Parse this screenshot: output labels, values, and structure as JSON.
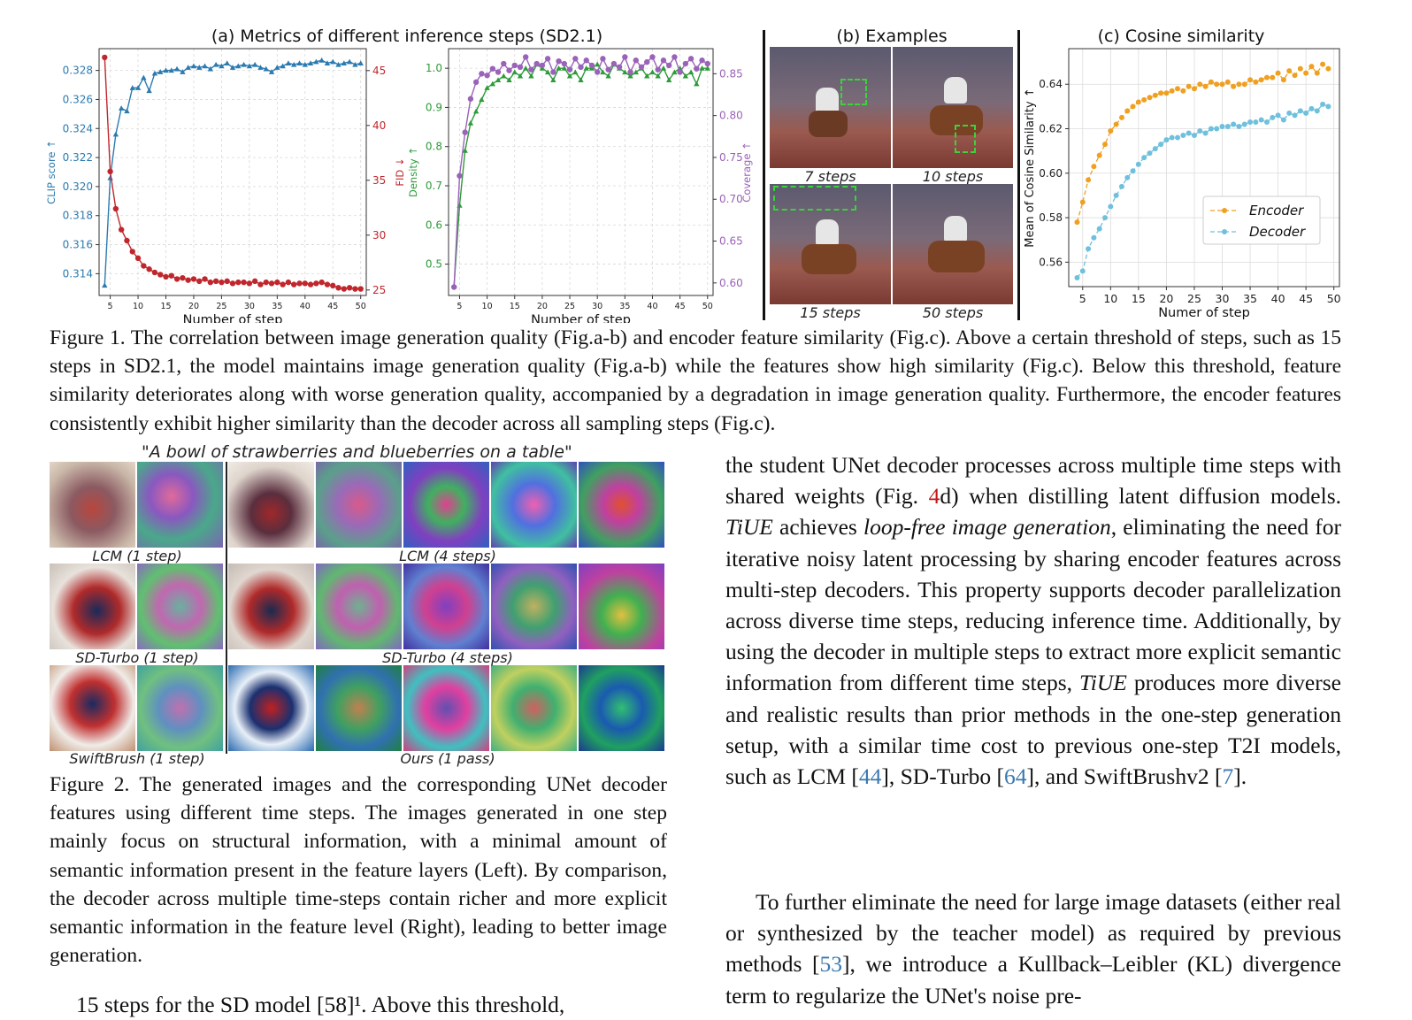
{
  "fig1": {
    "panel_a_title": "(a) Metrics of different inference steps (SD2.1)",
    "panel_b_title": "(b) Examples",
    "panel_c_title": "(c) Cosine similarity",
    "step_labels": [
      "7 steps",
      "10 steps",
      "15 steps",
      "50 steps"
    ],
    "caption": "Figure 1. The correlation between image generation quality (Fig.a-b) and encoder feature similarity (Fig.c). Above a certain threshold of steps, such as 15 steps in SD2.1, the model maintains image generation quality (Fig.a-b) while the features show high similarity (Fig.c). Below this threshold, feature similarity deteriorates along with worse generation quality, accompanied by a degradation in image generation quality. Furthermore, the encoder features consistently exhibit higher similarity than the decoder across all sampling steps (Fig.c)."
  },
  "chart_data": [
    {
      "type": "line",
      "xlabel": "Number of step",
      "x": [
        4,
        5,
        6,
        7,
        8,
        9,
        10,
        11,
        12,
        13,
        14,
        15,
        16,
        17,
        18,
        19,
        20,
        21,
        22,
        23,
        24,
        25,
        26,
        27,
        28,
        29,
        30,
        31,
        32,
        33,
        34,
        35,
        36,
        37,
        38,
        39,
        40,
        41,
        42,
        43,
        44,
        45,
        46,
        47,
        48,
        49,
        50
      ],
      "x_ticks": [
        5,
        10,
        15,
        20,
        25,
        30,
        35,
        40,
        45,
        50
      ],
      "y_left": {
        "label": "CLIP score ↑",
        "color": "#2b7bb0",
        "ylim": [
          0.3125,
          0.3295
        ],
        "ticks": [
          0.314,
          0.316,
          0.318,
          0.32,
          0.322,
          0.324,
          0.326,
          0.328
        ]
      },
      "y_right": {
        "label": "FID ↓",
        "color": "#c0272d",
        "ylim": [
          24.5,
          47
        ],
        "ticks": [
          25,
          30,
          35,
          40,
          45
        ]
      },
      "series": [
        {
          "axis": "left",
          "marker": "triangle",
          "color": "#2b7bb0",
          "values": [
            0.3132,
            0.3206,
            0.3236,
            0.3254,
            0.3252,
            0.3268,
            0.3268,
            0.3275,
            0.3266,
            0.3278,
            0.3279,
            0.328,
            0.328,
            0.3281,
            0.3279,
            0.3282,
            0.3283,
            0.3282,
            0.3283,
            0.3281,
            0.3284,
            0.3283,
            0.3285,
            0.3282,
            0.3283,
            0.3284,
            0.3283,
            0.3284,
            0.3282,
            0.3281,
            0.3279,
            0.3282,
            0.3283,
            0.3285,
            0.3284,
            0.3285,
            0.3284,
            0.3285,
            0.3286,
            0.3287,
            0.3285,
            0.3286,
            0.3284,
            0.3285,
            0.3286,
            0.3284,
            0.3285
          ]
        },
        {
          "axis": "right",
          "marker": "circle",
          "color": "#c0272d",
          "values": [
            46.2,
            35.8,
            32.4,
            30.5,
            29.5,
            28.5,
            27.9,
            27.2,
            26.9,
            26.6,
            26.4,
            26.2,
            26.3,
            26.0,
            26.1,
            25.9,
            26.0,
            25.8,
            26.0,
            25.7,
            25.8,
            25.7,
            25.8,
            25.6,
            25.7,
            25.7,
            25.6,
            25.8,
            25.5,
            25.7,
            25.6,
            25.7,
            25.5,
            25.7,
            25.5,
            25.6,
            25.6,
            25.5,
            25.6,
            25.7,
            25.5,
            25.4,
            25.2,
            25.1,
            25.2,
            25.1,
            25.1
          ]
        }
      ]
    },
    {
      "type": "line",
      "xlabel": "Number of step",
      "x": [
        4,
        5,
        6,
        7,
        8,
        9,
        10,
        11,
        12,
        13,
        14,
        15,
        16,
        17,
        18,
        19,
        20,
        21,
        22,
        23,
        24,
        25,
        26,
        27,
        28,
        29,
        30,
        31,
        32,
        33,
        34,
        35,
        36,
        37,
        38,
        39,
        40,
        41,
        42,
        43,
        44,
        45,
        46,
        47,
        48,
        49,
        50
      ],
      "x_ticks": [
        5,
        10,
        15,
        20,
        25,
        30,
        35,
        40,
        45,
        50
      ],
      "y_left": {
        "label": "Density ↑",
        "color": "#2e9b3a",
        "ylim": [
          0.42,
          1.05
        ],
        "ticks": [
          0.5,
          0.6,
          0.7,
          0.8,
          0.9,
          1.0
        ]
      },
      "y_right": {
        "label": "Coverage ↑",
        "color": "#9a62b8",
        "ylim": [
          0.585,
          0.88
        ],
        "ticks": [
          0.6,
          0.65,
          0.7,
          0.75,
          0.8,
          0.85
        ]
      },
      "series": [
        {
          "axis": "left",
          "marker": "triangle",
          "color": "#2e9b3a",
          "values": [
            0.445,
            0.65,
            0.79,
            0.86,
            0.89,
            0.92,
            0.95,
            0.96,
            0.97,
            0.98,
            0.97,
            0.99,
            0.98,
            1.0,
            0.98,
            1.01,
            1.0,
            0.99,
            0.97,
            1.0,
            1.0,
            0.98,
            0.99,
            0.97,
            1.0,
            1.0,
            1.01,
            0.99,
            0.98,
            1.01,
            1.0,
            0.99,
            0.98,
            0.99,
            1.0,
            0.98,
            0.99,
            0.98,
            1.0,
            0.97,
            0.99,
            1.0,
            0.98,
            0.99,
            0.96,
            1.0,
            1.0
          ]
        },
        {
          "axis": "right",
          "marker": "circle",
          "color": "#9a62b8",
          "values": [
            0.595,
            0.728,
            0.78,
            0.82,
            0.84,
            0.85,
            0.848,
            0.856,
            0.852,
            0.862,
            0.854,
            0.86,
            0.858,
            0.87,
            0.855,
            0.862,
            0.86,
            0.868,
            0.852,
            0.865,
            0.862,
            0.855,
            0.868,
            0.858,
            0.866,
            0.86,
            0.852,
            0.868,
            0.855,
            0.862,
            0.858,
            0.87,
            0.852,
            0.866,
            0.858,
            0.864,
            0.87,
            0.855,
            0.866,
            0.86,
            0.87,
            0.852,
            0.862,
            0.868,
            0.856,
            0.866,
            0.862
          ]
        }
      ]
    },
    {
      "type": "line",
      "xlabel": "Numer of step",
      "ylabel": "Mean of Cosine Similarity ↑",
      "x": [
        4,
        5,
        6,
        7,
        8,
        9,
        10,
        11,
        12,
        13,
        14,
        15,
        16,
        17,
        18,
        19,
        20,
        21,
        22,
        23,
        24,
        25,
        26,
        27,
        28,
        29,
        30,
        31,
        32,
        33,
        34,
        35,
        36,
        37,
        38,
        39,
        40,
        41,
        42,
        43,
        44,
        45,
        46,
        47,
        48,
        49
      ],
      "x_ticks": [
        5,
        10,
        15,
        20,
        25,
        30,
        35,
        40,
        45,
        50
      ],
      "ylim": [
        0.549,
        0.656
      ],
      "y_ticks": [
        0.56,
        0.58,
        0.6,
        0.62,
        0.64
      ],
      "legend": "center-right",
      "series": [
        {
          "name": "Encoder",
          "color": "#f0a020",
          "values": [
            0.578,
            0.587,
            0.597,
            0.603,
            0.608,
            0.613,
            0.619,
            0.622,
            0.625,
            0.628,
            0.63,
            0.632,
            0.633,
            0.634,
            0.635,
            0.636,
            0.636,
            0.637,
            0.638,
            0.637,
            0.639,
            0.638,
            0.64,
            0.639,
            0.641,
            0.64,
            0.64,
            0.641,
            0.639,
            0.64,
            0.64,
            0.642,
            0.641,
            0.642,
            0.643,
            0.643,
            0.645,
            0.642,
            0.646,
            0.644,
            0.647,
            0.645,
            0.648,
            0.645,
            0.649,
            0.647
          ]
        },
        {
          "name": "Decoder",
          "color": "#6fc0dd",
          "values": [
            0.553,
            0.556,
            0.566,
            0.571,
            0.575,
            0.58,
            0.585,
            0.59,
            0.594,
            0.598,
            0.601,
            0.604,
            0.607,
            0.609,
            0.611,
            0.613,
            0.615,
            0.616,
            0.616,
            0.617,
            0.618,
            0.617,
            0.619,
            0.618,
            0.62,
            0.62,
            0.621,
            0.621,
            0.622,
            0.621,
            0.622,
            0.623,
            0.623,
            0.624,
            0.623,
            0.625,
            0.626,
            0.624,
            0.627,
            0.626,
            0.628,
            0.627,
            0.629,
            0.628,
            0.631,
            0.63
          ]
        }
      ]
    }
  ],
  "fig2": {
    "prompt": "\"A bowl of strawberries and blueberries on a table\"",
    "labels": [
      "LCM (1 step)",
      "LCM (4 steps)",
      "SD-Turbo (1 step)",
      "SD-Turbo (4 steps)",
      "SwiftBrush (1 step)",
      "Ours (1 pass)"
    ],
    "caption": "Figure 2. The generated images and the corresponding UNet decoder features using different time steps. The images generated in one step mainly focus on structural information, with a minimal amount of semantic information present in the feature layers (Left). By comparison, the decoder across multiple time-steps contain richer and more explicit semantic information in the feature level (Right), leading to better image generation.",
    "bottom_fragment": "15 steps for the SD model [58]¹. Above this threshold,"
  },
  "right_col": {
    "p1_a": "the student UNet decoder processes across multiple time steps with shared weights (Fig. ",
    "p1_ref": "4",
    "p1_b": "d) when distilling latent diffusion models. ",
    "p1_name": "TiUE",
    "p1_c": " achieves ",
    "p1_em": "loop-free image generation",
    "p1_d": ", eliminating the need for iterative noisy latent processing by sharing encoder features across multi-step decoders. This property supports decoder parallelization across diverse time steps, reducing inference time. Additionally, by using the decoder in multiple steps to extract more explicit semantic information from different time steps, ",
    "p1_name2": "TiUE",
    "p1_e": " produces more diverse and realistic results than prior methods in the one-step generation setup, with a similar time cost to previous one-step T2I models, such as LCM [",
    "c44": "44",
    "p1_f": "], SD-Turbo [",
    "c64": "64",
    "p1_g": "], and SwiftBrushv2 [",
    "c7": "7",
    "p1_h": "].",
    "p2_a": "To further eliminate the need for large image datasets (either real or synthesized by the teacher model) as required by previous methods [",
    "c53": "53",
    "p2_b": "], we introduce a Kullback–Leibler (KL) divergence term to regularize the UNet's noise pre-"
  }
}
